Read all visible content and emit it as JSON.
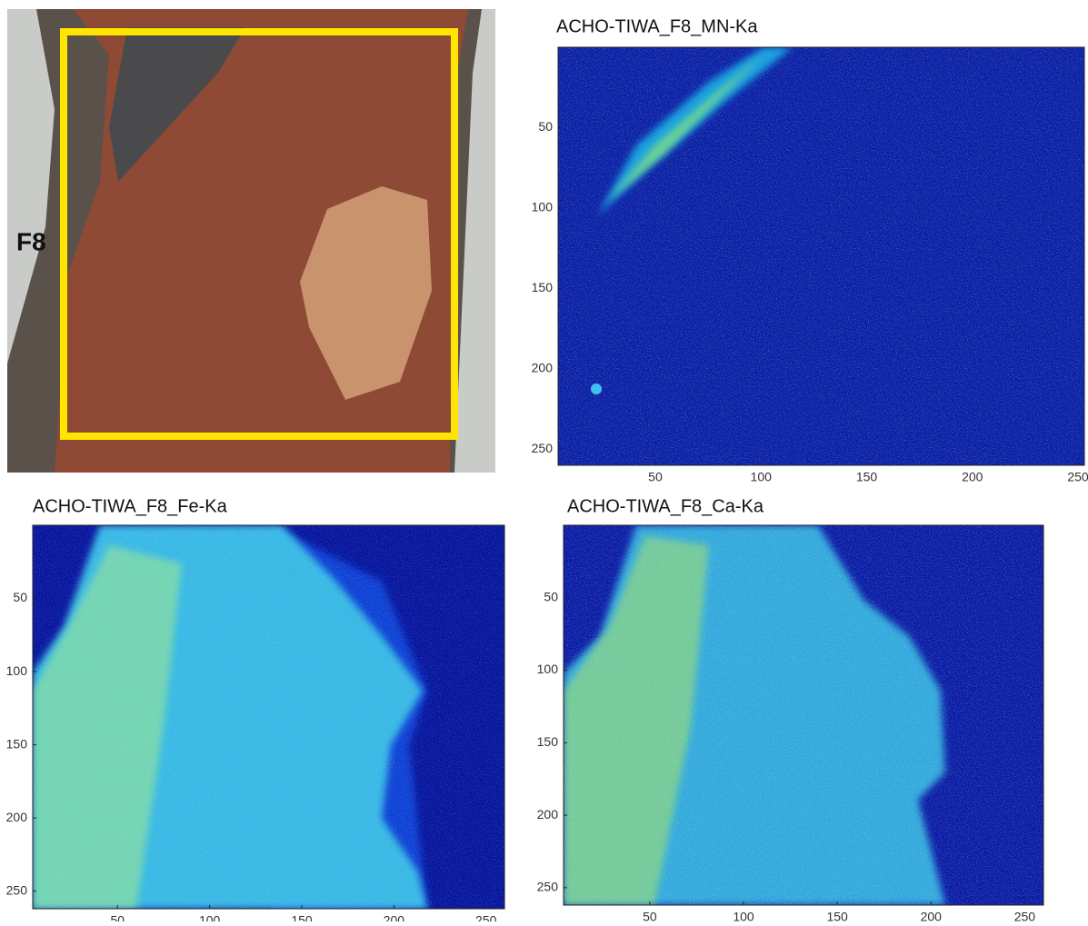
{
  "photo": {
    "label": "F8"
  },
  "chart_data": [
    {
      "type": "heatmap",
      "title": "ACHO-TIWA_F8_MN-Ka",
      "xlim": [
        4,
        253
      ],
      "ylim": [
        0,
        260
      ],
      "xticks": [
        50,
        100,
        150,
        200,
        250
      ],
      "yticks": [
        50,
        100,
        150,
        200,
        250
      ]
    },
    {
      "type": "heatmap",
      "title": "ACHO-TIWA_F8_Fe-Ka",
      "xlim": [
        4,
        260
      ],
      "ylim": [
        0,
        262
      ],
      "xticks": [
        50,
        100,
        150,
        200,
        250
      ],
      "yticks": [
        50,
        100,
        150,
        200,
        250
      ]
    },
    {
      "type": "heatmap",
      "title": "ACHO-TIWA_F8_Ca-Ka",
      "xlim": [
        4,
        260
      ],
      "ylim": [
        0,
        262
      ],
      "xticks": [
        50,
        100,
        150,
        200,
        250
      ],
      "yticks": [
        50,
        100,
        150,
        200,
        250
      ]
    }
  ]
}
